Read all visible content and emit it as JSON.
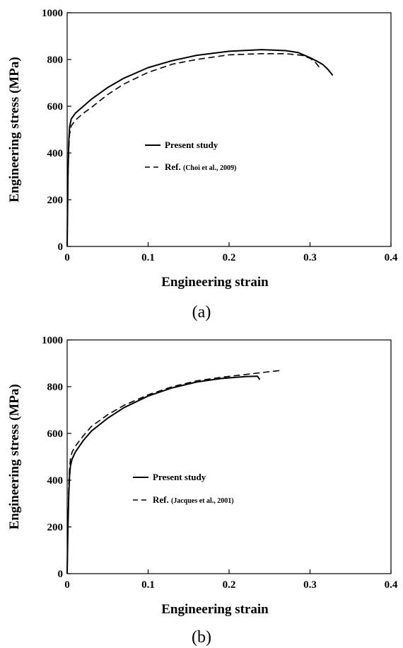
{
  "chart_data": [
    {
      "type": "line",
      "caption": "(a)",
      "xlabel": "Engineering strain",
      "ylabel": "Engineering stress (MPa)",
      "xlim": [
        0,
        0.4
      ],
      "ylim": [
        0,
        1000
      ],
      "xticks": [
        "0",
        "0.1",
        "0.2",
        "0.3",
        "0.4"
      ],
      "yticks": [
        "0",
        "200",
        "400",
        "600",
        "800",
        "1000"
      ],
      "legend": "upper-left-center",
      "series": [
        {
          "name": "Present study",
          "style": "solid",
          "x": [
            0,
            0.001,
            0.002,
            0.003,
            0.005,
            0.01,
            0.02,
            0.03,
            0.05,
            0.07,
            0.1,
            0.13,
            0.16,
            0.2,
            0.24,
            0.27,
            0.285,
            0.3,
            0.31,
            0.316,
            0.322,
            0.328
          ],
          "y": [
            0,
            300,
            450,
            510,
            545,
            570,
            600,
            630,
            680,
            720,
            765,
            795,
            818,
            835,
            842,
            838,
            830,
            808,
            790,
            778,
            758,
            732
          ]
        },
        {
          "name": "Ref.",
          "citation": "(Choi et al., 2009)",
          "style": "dashed",
          "x": [
            0,
            0.001,
            0.002,
            0.003,
            0.005,
            0.01,
            0.02,
            0.03,
            0.05,
            0.07,
            0.1,
            0.13,
            0.16,
            0.2,
            0.24,
            0.27,
            0.29,
            0.3,
            0.306,
            0.312
          ],
          "y": [
            0,
            280,
            420,
            480,
            515,
            540,
            570,
            595,
            650,
            695,
            745,
            780,
            800,
            820,
            825,
            825,
            818,
            805,
            790,
            765
          ]
        }
      ]
    },
    {
      "type": "line",
      "caption": "(b)",
      "xlabel": "Engineering strain",
      "ylabel": "Engineering stress (MPa)",
      "xlim": [
        0,
        0.4
      ],
      "ylim": [
        0,
        1000
      ],
      "xticks": [
        "0",
        "0.1",
        "0.2",
        "0.3",
        "0.4"
      ],
      "yticks": [
        "0",
        "200",
        "400",
        "600",
        "800",
        "1000"
      ],
      "legend": "center-left",
      "series": [
        {
          "name": "Present study",
          "style": "solid",
          "x": [
            0,
            0.001,
            0.002,
            0.003,
            0.004,
            0.006,
            0.01,
            0.02,
            0.03,
            0.05,
            0.07,
            0.1,
            0.13,
            0.16,
            0.19,
            0.22,
            0.235,
            0.238
          ],
          "y": [
            0,
            200,
            340,
            420,
            460,
            490,
            520,
            570,
            610,
            665,
            710,
            760,
            795,
            820,
            835,
            843,
            845,
            830
          ]
        },
        {
          "name": "Ref.",
          "citation": "(Jacques et al., 2001)",
          "style": "dashed",
          "x": [
            0,
            0.001,
            0.002,
            0.003,
            0.004,
            0.006,
            0.01,
            0.02,
            0.03,
            0.05,
            0.07,
            0.1,
            0.13,
            0.16,
            0.19,
            0.22,
            0.245,
            0.265
          ],
          "y": [
            0,
            220,
            380,
            450,
            490,
            520,
            545,
            590,
            630,
            680,
            720,
            765,
            800,
            825,
            840,
            852,
            862,
            870
          ]
        }
      ]
    }
  ]
}
